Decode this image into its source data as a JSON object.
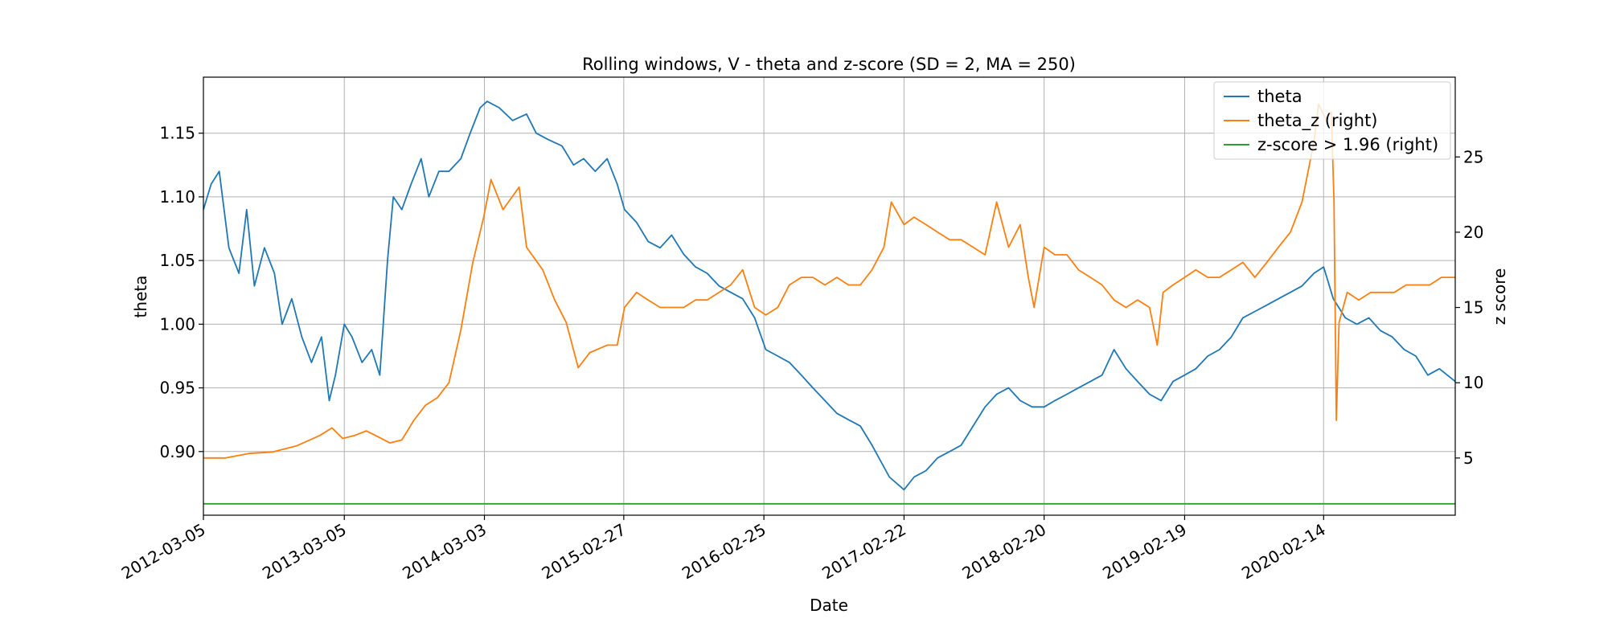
{
  "chart_data": {
    "type": "line",
    "title": "Rolling windows, V - theta and z-score (SD = 2, MA = 250)",
    "xlabel": "Date",
    "ylabel": "theta",
    "ylabel_right": "z score",
    "x_range": [
      "2012-03-05",
      "2021-01-20"
    ],
    "ylim": [
      0.85,
      1.194
    ],
    "ylim_right": [
      1.2,
      30.3
    ],
    "x_ticks": [
      "2012-03-05",
      "2013-03-05",
      "2014-03-03",
      "2015-02-27",
      "2016-02-25",
      "2017-02-22",
      "2018-02-20",
      "2019-02-19",
      "2020-02-14"
    ],
    "y_ticks": [
      "0.90",
      "0.95",
      "1.00",
      "1.05",
      "1.10",
      "1.15"
    ],
    "y_ticks_right": [
      "5",
      "10",
      "15",
      "20",
      "25"
    ],
    "grid": true,
    "legend_position": "top-right",
    "series": [
      {
        "name": "theta",
        "axis": "left",
        "color": "#1f77b4",
        "points": [
          [
            "2012-03-05",
            1.09
          ],
          [
            "2012-03-25",
            1.11
          ],
          [
            "2012-04-15",
            1.12
          ],
          [
            "2012-05-10",
            1.06
          ],
          [
            "2012-06-05",
            1.04
          ],
          [
            "2012-06-25",
            1.09
          ],
          [
            "2012-07-15",
            1.03
          ],
          [
            "2012-08-10",
            1.06
          ],
          [
            "2012-09-05",
            1.04
          ],
          [
            "2012-09-25",
            1.0
          ],
          [
            "2012-10-20",
            1.02
          ],
          [
            "2012-11-15",
            0.99
          ],
          [
            "2012-12-10",
            0.97
          ],
          [
            "2013-01-05",
            0.99
          ],
          [
            "2013-01-25",
            0.94
          ],
          [
            "2013-02-10",
            0.96
          ],
          [
            "2013-03-05",
            1.0
          ],
          [
            "2013-03-25",
            0.99
          ],
          [
            "2013-04-20",
            0.97
          ],
          [
            "2013-05-15",
            0.98
          ],
          [
            "2013-06-05",
            0.96
          ],
          [
            "2013-06-25",
            1.05
          ],
          [
            "2013-07-10",
            1.1
          ],
          [
            "2013-08-01",
            1.09
          ],
          [
            "2013-08-25",
            1.11
          ],
          [
            "2013-09-20",
            1.13
          ],
          [
            "2013-10-10",
            1.1
          ],
          [
            "2013-11-05",
            1.12
          ],
          [
            "2013-12-01",
            1.12
          ],
          [
            "2014-01-01",
            1.13
          ],
          [
            "2014-01-25",
            1.15
          ],
          [
            "2014-02-20",
            1.17
          ],
          [
            "2014-03-10",
            1.175
          ],
          [
            "2014-04-10",
            1.17
          ],
          [
            "2014-05-15",
            1.16
          ],
          [
            "2014-06-20",
            1.165
          ],
          [
            "2014-07-15",
            1.15
          ],
          [
            "2014-08-15",
            1.145
          ],
          [
            "2014-09-20",
            1.14
          ],
          [
            "2014-10-20",
            1.125
          ],
          [
            "2014-11-15",
            1.13
          ],
          [
            "2014-12-15",
            1.12
          ],
          [
            "2015-01-15",
            1.13
          ],
          [
            "2015-02-10",
            1.11
          ],
          [
            "2015-03-01",
            1.09
          ],
          [
            "2015-04-01",
            1.08
          ],
          [
            "2015-05-01",
            1.065
          ],
          [
            "2015-06-01",
            1.06
          ],
          [
            "2015-07-01",
            1.07
          ],
          [
            "2015-08-01",
            1.055
          ],
          [
            "2015-09-01",
            1.045
          ],
          [
            "2015-10-01",
            1.04
          ],
          [
            "2015-11-01",
            1.03
          ],
          [
            "2015-12-01",
            1.025
          ],
          [
            "2016-01-01",
            1.02
          ],
          [
            "2016-02-01",
            1.005
          ],
          [
            "2016-03-01",
            0.98
          ],
          [
            "2016-04-01",
            0.975
          ],
          [
            "2016-05-01",
            0.97
          ],
          [
            "2016-06-01",
            0.96
          ],
          [
            "2016-07-01",
            0.95
          ],
          [
            "2016-08-01",
            0.94
          ],
          [
            "2016-09-01",
            0.93
          ],
          [
            "2016-10-01",
            0.925
          ],
          [
            "2016-11-01",
            0.92
          ],
          [
            "2016-12-01",
            0.905
          ],
          [
            "2017-01-15",
            0.88
          ],
          [
            "2017-02-22",
            0.87
          ],
          [
            "2017-03-20",
            0.88
          ],
          [
            "2017-04-20",
            0.885
          ],
          [
            "2017-05-20",
            0.895
          ],
          [
            "2017-06-20",
            0.9
          ],
          [
            "2017-07-20",
            0.905
          ],
          [
            "2017-08-20",
            0.92
          ],
          [
            "2017-09-20",
            0.935
          ],
          [
            "2017-10-20",
            0.945
          ],
          [
            "2017-11-20",
            0.95
          ],
          [
            "2017-12-20",
            0.94
          ],
          [
            "2018-01-20",
            0.935
          ],
          [
            "2018-02-20",
            0.935
          ],
          [
            "2018-03-20",
            0.94
          ],
          [
            "2018-04-20",
            0.945
          ],
          [
            "2018-05-20",
            0.95
          ],
          [
            "2018-06-20",
            0.955
          ],
          [
            "2018-07-20",
            0.96
          ],
          [
            "2018-08-20",
            0.98
          ],
          [
            "2018-09-20",
            0.965
          ],
          [
            "2018-10-20",
            0.955
          ],
          [
            "2018-11-20",
            0.945
          ],
          [
            "2018-12-20",
            0.94
          ],
          [
            "2019-01-20",
            0.955
          ],
          [
            "2019-02-19",
            0.96
          ],
          [
            "2019-03-20",
            0.965
          ],
          [
            "2019-04-20",
            0.975
          ],
          [
            "2019-05-20",
            0.98
          ],
          [
            "2019-06-20",
            0.99
          ],
          [
            "2019-07-20",
            1.005
          ],
          [
            "2019-08-20",
            1.01
          ],
          [
            "2019-09-20",
            1.015
          ],
          [
            "2019-10-20",
            1.02
          ],
          [
            "2019-11-20",
            1.025
          ],
          [
            "2019-12-20",
            1.03
          ],
          [
            "2020-01-20",
            1.04
          ],
          [
            "2020-02-14",
            1.045
          ],
          [
            "2020-03-10",
            1.02
          ],
          [
            "2020-04-10",
            1.005
          ],
          [
            "2020-05-10",
            1.0
          ],
          [
            "2020-06-10",
            1.005
          ],
          [
            "2020-07-10",
            0.995
          ],
          [
            "2020-08-10",
            0.99
          ],
          [
            "2020-09-10",
            0.98
          ],
          [
            "2020-10-10",
            0.975
          ],
          [
            "2020-11-10",
            0.96
          ],
          [
            "2020-12-10",
            0.965
          ],
          [
            "2021-01-20",
            0.955
          ]
        ]
      },
      {
        "name": "theta_z (right)",
        "axis": "right",
        "color": "#ff7f0e",
        "points": [
          [
            "2012-03-05",
            5.0
          ],
          [
            "2012-05-01",
            5.0
          ],
          [
            "2012-07-01",
            5.3
          ],
          [
            "2012-09-01",
            5.4
          ],
          [
            "2012-11-01",
            5.8
          ],
          [
            "2013-01-01",
            6.5
          ],
          [
            "2013-02-01",
            7.0
          ],
          [
            "2013-03-01",
            6.3
          ],
          [
            "2013-04-01",
            6.5
          ],
          [
            "2013-05-01",
            6.8
          ],
          [
            "2013-06-01",
            6.4
          ],
          [
            "2013-07-01",
            6.0
          ],
          [
            "2013-08-01",
            6.2
          ],
          [
            "2013-09-01",
            7.5
          ],
          [
            "2013-10-01",
            8.5
          ],
          [
            "2013-11-01",
            9.0
          ],
          [
            "2013-12-01",
            10.0
          ],
          [
            "2014-01-01",
            13.5
          ],
          [
            "2014-02-01",
            18.0
          ],
          [
            "2014-03-01",
            21.0
          ],
          [
            "2014-03-20",
            23.5
          ],
          [
            "2014-04-20",
            21.5
          ],
          [
            "2014-06-01",
            23.0
          ],
          [
            "2014-06-20",
            19.0
          ],
          [
            "2014-08-01",
            17.5
          ],
          [
            "2014-09-01",
            15.5
          ],
          [
            "2014-10-01",
            14.0
          ],
          [
            "2014-11-01",
            11.0
          ],
          [
            "2014-12-01",
            12.0
          ],
          [
            "2015-01-15",
            12.5
          ],
          [
            "2015-02-10",
            12.5
          ],
          [
            "2015-03-01",
            15.0
          ],
          [
            "2015-04-01",
            16.0
          ],
          [
            "2015-05-01",
            15.5
          ],
          [
            "2015-06-01",
            15.0
          ],
          [
            "2015-07-01",
            15.0
          ],
          [
            "2015-08-01",
            15.0
          ],
          [
            "2015-09-01",
            15.5
          ],
          [
            "2015-10-01",
            15.5
          ],
          [
            "2015-11-01",
            16.0
          ],
          [
            "2015-12-01",
            16.5
          ],
          [
            "2016-01-01",
            17.5
          ],
          [
            "2016-02-01",
            15.0
          ],
          [
            "2016-03-01",
            14.5
          ],
          [
            "2016-04-01",
            15.0
          ],
          [
            "2016-05-01",
            16.5
          ],
          [
            "2016-06-01",
            17.0
          ],
          [
            "2016-07-01",
            17.0
          ],
          [
            "2016-08-01",
            16.5
          ],
          [
            "2016-09-01",
            17.0
          ],
          [
            "2016-10-01",
            16.5
          ],
          [
            "2016-11-01",
            16.5
          ],
          [
            "2016-12-01",
            17.5
          ],
          [
            "2017-01-01",
            19.0
          ],
          [
            "2017-01-20",
            22.0
          ],
          [
            "2017-02-22",
            20.5
          ],
          [
            "2017-03-20",
            21.0
          ],
          [
            "2017-04-20",
            20.5
          ],
          [
            "2017-05-20",
            20.0
          ],
          [
            "2017-06-20",
            19.5
          ],
          [
            "2017-07-20",
            19.5
          ],
          [
            "2017-08-20",
            19.0
          ],
          [
            "2017-09-20",
            18.5
          ],
          [
            "2017-10-20",
            22.0
          ],
          [
            "2017-11-20",
            19.0
          ],
          [
            "2017-12-20",
            20.5
          ],
          [
            "2018-01-10",
            17.0
          ],
          [
            "2018-01-25",
            15.0
          ],
          [
            "2018-02-20",
            19.0
          ],
          [
            "2018-03-20",
            18.5
          ],
          [
            "2018-04-20",
            18.5
          ],
          [
            "2018-05-20",
            17.5
          ],
          [
            "2018-06-20",
            17.0
          ],
          [
            "2018-07-20",
            16.5
          ],
          [
            "2018-08-20",
            15.5
          ],
          [
            "2018-09-20",
            15.0
          ],
          [
            "2018-10-20",
            15.5
          ],
          [
            "2018-11-20",
            15.0
          ],
          [
            "2018-12-10",
            12.5
          ],
          [
            "2018-12-25",
            16.0
          ],
          [
            "2019-01-20",
            16.5
          ],
          [
            "2019-02-19",
            17.0
          ],
          [
            "2019-03-20",
            17.5
          ],
          [
            "2019-04-20",
            17.0
          ],
          [
            "2019-05-20",
            17.0
          ],
          [
            "2019-06-20",
            17.5
          ],
          [
            "2019-07-20",
            18.0
          ],
          [
            "2019-08-20",
            17.0
          ],
          [
            "2019-09-20",
            18.0
          ],
          [
            "2019-10-20",
            19.0
          ],
          [
            "2019-11-20",
            20.0
          ],
          [
            "2019-12-20",
            22.0
          ],
          [
            "2020-01-20",
            26.0
          ],
          [
            "2020-02-01",
            28.5
          ],
          [
            "2020-02-20",
            27.5
          ],
          [
            "2020-03-05",
            28.0
          ],
          [
            "2020-03-12",
            22.0
          ],
          [
            "2020-03-18",
            7.5
          ],
          [
            "2020-03-25",
            14.0
          ],
          [
            "2020-04-15",
            16.0
          ],
          [
            "2020-05-15",
            15.5
          ],
          [
            "2020-06-15",
            16.0
          ],
          [
            "2020-07-15",
            16.0
          ],
          [
            "2020-08-15",
            16.0
          ],
          [
            "2020-09-15",
            16.5
          ],
          [
            "2020-10-15",
            16.5
          ],
          [
            "2020-11-15",
            16.5
          ],
          [
            "2020-12-15",
            17.0
          ],
          [
            "2021-01-20",
            17.0
          ]
        ]
      },
      {
        "name": "z-score > 1.96 (right)",
        "axis": "right",
        "color": "#2ca02c",
        "points": [
          [
            "2012-03-05",
            1.96
          ],
          [
            "2021-01-20",
            1.96
          ]
        ]
      }
    ]
  }
}
